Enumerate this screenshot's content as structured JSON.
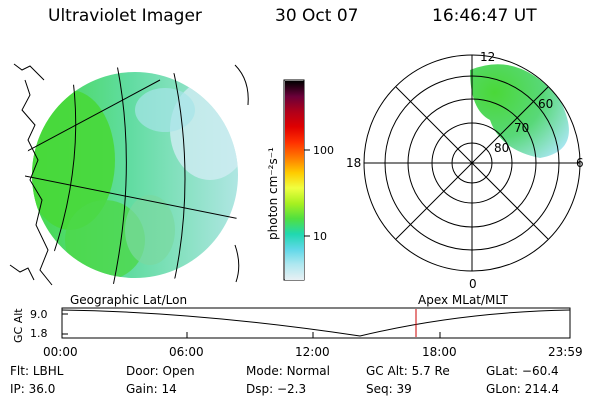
{
  "header": {
    "title": "Ultraviolet Imager",
    "date": "30 Oct 07",
    "time": "16:46:47 UT"
  },
  "colorbar": {
    "unit_label": "photon cm⁻²s⁻¹",
    "ticks": [
      "100",
      "10"
    ],
    "colors": [
      "#000000",
      "#6a0039",
      "#b0001a",
      "#e00000",
      "#ff3000",
      "#ff7a00",
      "#ffcc00",
      "#f0ff40",
      "#a8f020",
      "#50e040",
      "#20d8b0",
      "#60d8e8",
      "#b0e8f0",
      "#e8f0f4"
    ]
  },
  "polar_plot": {
    "mlt_labels": {
      "top": "12",
      "left": "18",
      "right": "6",
      "bottom": "0"
    },
    "lat_labels": [
      "60",
      "70",
      "80"
    ]
  },
  "altitude_panel": {
    "ylabel": "GC Alt",
    "yticks": [
      "9.0",
      "1.8"
    ],
    "left_title": "Geographic Lat/Lon",
    "right_title": "Apex MLat/MLT",
    "xticks": [
      "00:00",
      "06:00",
      "12:00",
      "18:00",
      "23:59"
    ],
    "marker_color": "#cc0000"
  },
  "status": {
    "row1": [
      {
        "key": "Flt:",
        "val": "LBHL"
      },
      {
        "key": "Door:",
        "val": "Open"
      },
      {
        "key": "Mode:",
        "val": "Normal"
      },
      {
        "key": "GC Alt:",
        "val": "5.7 Re"
      },
      {
        "key": "GLat:",
        "val": "−60.4"
      }
    ],
    "row2": [
      {
        "key": "IP:",
        "val": "36.0"
      },
      {
        "key": "Gain:",
        "val": "14"
      },
      {
        "key": "Dsp:",
        "val": "−2.3"
      },
      {
        "key": "Seq:",
        "val": "39"
      },
      {
        "key": "GLon:",
        "val": "214.4"
      }
    ]
  }
}
